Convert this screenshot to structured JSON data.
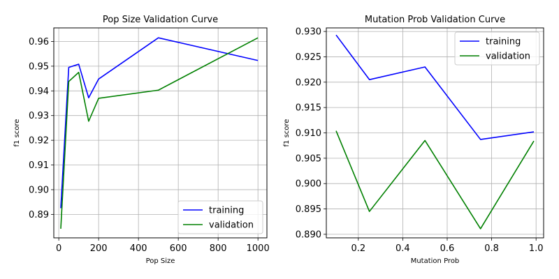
{
  "chart_data": [
    {
      "type": "line",
      "title": "Pop Size Validation Curve",
      "xlabel": "Pop Size",
      "ylabel": "f1 score",
      "xlim": [
        -25,
        1045
      ],
      "ylim": [
        0.8805,
        0.9655
      ],
      "xticks": [
        0,
        200,
        400,
        600,
        800,
        1000
      ],
      "yticks": [
        0.89,
        0.9,
        0.91,
        0.92,
        0.93,
        0.94,
        0.95,
        0.96
      ],
      "ytick_decimals": 2,
      "grid": true,
      "legend": "lower right",
      "series": [
        {
          "name": "training",
          "color": "#0000ff",
          "x": [
            10,
            50,
            100,
            150,
            200,
            500,
            1000
          ],
          "y": [
            0.8925,
            0.9495,
            0.9508,
            0.9372,
            0.9448,
            0.9615,
            0.9523
          ]
        },
        {
          "name": "validation",
          "color": "#008000",
          "x": [
            10,
            50,
            100,
            150,
            200,
            500,
            1000
          ],
          "y": [
            0.8842,
            0.9438,
            0.9475,
            0.9277,
            0.937,
            0.9403,
            0.9615
          ]
        }
      ]
    },
    {
      "type": "line",
      "title": "Mutation Prob Validation Curve",
      "xlabel": "Mutation Prob",
      "ylabel": "f1 score",
      "xlim": [
        0.056,
        1.034
      ],
      "ylim": [
        0.8893,
        0.9307
      ],
      "xticks": [
        0.2,
        0.4,
        0.6,
        0.8,
        1.0
      ],
      "yticks": [
        0.89,
        0.895,
        0.9,
        0.905,
        0.91,
        0.915,
        0.92,
        0.925,
        0.93
      ],
      "xtick_decimals": 1,
      "ytick_decimals": 3,
      "grid": true,
      "legend": "upper right",
      "series": [
        {
          "name": "training",
          "color": "#0000ff",
          "x": [
            0.1,
            0.25,
            0.5,
            0.75,
            0.99
          ],
          "y": [
            0.9293,
            0.9205,
            0.923,
            0.9087,
            0.9102
          ]
        },
        {
          "name": "validation",
          "color": "#008000",
          "x": [
            0.1,
            0.25,
            0.5,
            0.75,
            0.99
          ],
          "y": [
            0.9104,
            0.8945,
            0.9085,
            0.8911,
            0.9084
          ]
        }
      ]
    }
  ]
}
